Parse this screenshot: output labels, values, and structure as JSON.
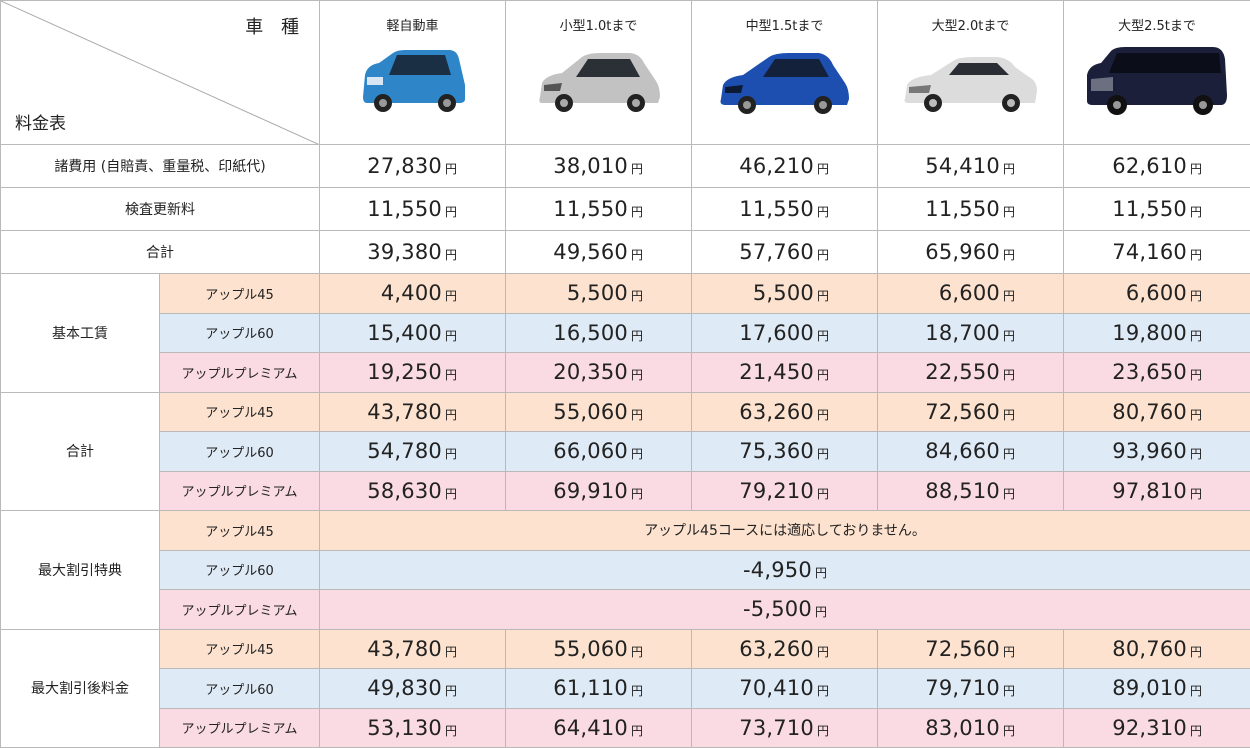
{
  "header": {
    "vehicle_type_label": "車 種",
    "fee_table_label": "料金表",
    "vehicles": [
      {
        "name": "軽自動車",
        "icon": "kei-car-icon",
        "color": "#2e86c8"
      },
      {
        "name": "小型1.0tまで",
        "icon": "small-car-icon",
        "color": "#b8b8b8"
      },
      {
        "name": "中型1.5tまで",
        "icon": "medium-car-icon",
        "color": "#1d4fb0"
      },
      {
        "name": "大型2.0tまで",
        "icon": "sedan-car-icon",
        "color": "#d8d8d8"
      },
      {
        "name": "大型2.5tまで",
        "icon": "minivan-car-icon",
        "color": "#1b1f3a"
      }
    ]
  },
  "yen": "円",
  "fees": [
    {
      "label": "諸費用 (自賠責、重量税、印紙代)",
      "values": [
        "27,830",
        "38,010",
        "46,210",
        "54,410",
        "62,610"
      ]
    },
    {
      "label": "検査更新料",
      "values": [
        "11,550",
        "11,550",
        "11,550",
        "11,550",
        "11,550"
      ]
    },
    {
      "label": "合計",
      "values": [
        "39,380",
        "49,560",
        "57,760",
        "65,960",
        "74,160"
      ]
    }
  ],
  "sections": [
    {
      "label": "基本工賃",
      "rows": [
        {
          "course": "アップル45",
          "values": [
            "4,400",
            "5,500",
            "5,500",
            "6,600",
            "6,600"
          ]
        },
        {
          "course": "アップル60",
          "values": [
            "15,400",
            "16,500",
            "17,600",
            "18,700",
            "19,800"
          ]
        },
        {
          "course": "アップルプレミアム",
          "values": [
            "19,250",
            "20,350",
            "21,450",
            "22,550",
            "23,650"
          ]
        }
      ]
    },
    {
      "label": "合計",
      "rows": [
        {
          "course": "アップル45",
          "values": [
            "43,780",
            "55,060",
            "63,260",
            "72,560",
            "80,760"
          ]
        },
        {
          "course": "アップル60",
          "values": [
            "54,780",
            "66,060",
            "75,360",
            "84,660",
            "93,960"
          ]
        },
        {
          "course": "アップルプレミアム",
          "values": [
            "58,630",
            "69,910",
            "79,210",
            "88,510",
            "97,810"
          ]
        }
      ]
    },
    {
      "label": "最大割引特典",
      "rows": [
        {
          "course": "アップル45",
          "note": "アップル45コースには適応しておりません。"
        },
        {
          "course": "アップル60",
          "value": "-4,950"
        },
        {
          "course": "アップルプレミアム",
          "value": "-5,500"
        }
      ]
    },
    {
      "label": "最大割引後料金",
      "rows": [
        {
          "course": "アップル45",
          "values": [
            "43,780",
            "55,060",
            "63,260",
            "72,560",
            "80,760"
          ]
        },
        {
          "course": "アップル60",
          "values": [
            "49,830",
            "61,110",
            "70,410",
            "79,710",
            "89,010"
          ]
        },
        {
          "course": "アップルプレミアム",
          "values": [
            "53,130",
            "64,410",
            "73,710",
            "83,010",
            "92,310"
          ]
        }
      ]
    }
  ],
  "colors": {
    "apple45_bg": "#fde3cf",
    "apple60_bg": "#deeaf6",
    "premium_bg": "#fadbe3"
  }
}
